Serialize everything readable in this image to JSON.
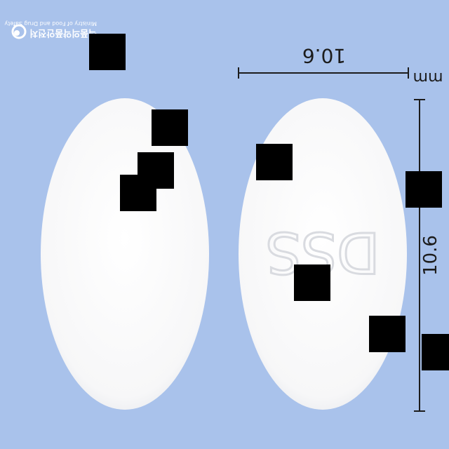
{
  "watermark": {
    "korean": "식품의약품안전처",
    "english": "Ministry of Food and Drug Safety"
  },
  "measurements": {
    "horizontal_value": "10.6",
    "vertical_value": "10.6",
    "unit": "mm"
  },
  "pill": {
    "imprint_back": "DSS",
    "imprint_front": "",
    "color": "#fbfbfb"
  },
  "colors": {
    "background": "#a9c2eb",
    "tablet": "#fbfbfb",
    "ruler": "#1c1c1c"
  }
}
